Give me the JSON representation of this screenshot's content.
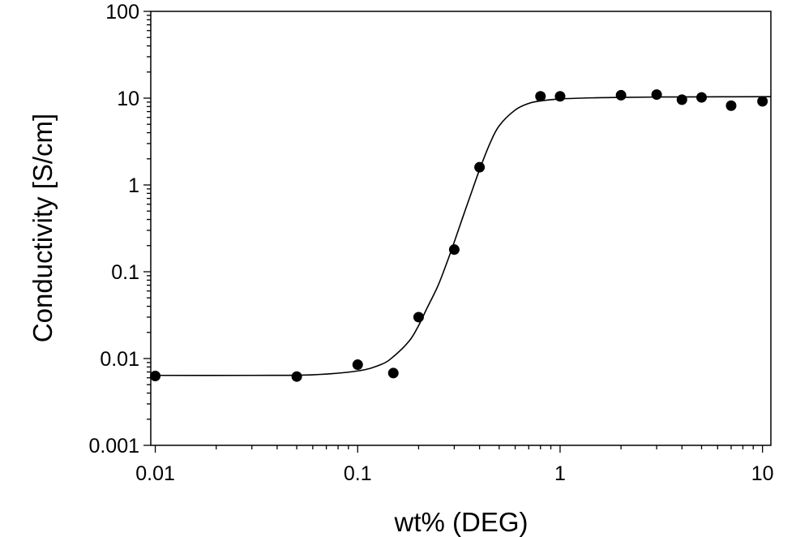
{
  "chart_data": {
    "type": "scatter",
    "title": "",
    "xlabel": "wt% (DEG)",
    "ylabel": "Conductivity [S/cm]",
    "x_scale": "log",
    "y_scale": "log",
    "xlim": [
      0.0095,
      11
    ],
    "ylim": [
      0.001,
      100
    ],
    "x_ticks": [
      {
        "value": 0.01,
        "label": "0.01"
      },
      {
        "value": 0.1,
        "label": "0.1"
      },
      {
        "value": 1,
        "label": "1"
      },
      {
        "value": 10,
        "label": "10"
      }
    ],
    "y_ticks": [
      {
        "value": 0.001,
        "label": "0.001"
      },
      {
        "value": 0.01,
        "label": "0.01"
      },
      {
        "value": 0.1,
        "label": "0.1"
      },
      {
        "value": 1,
        "label": "1"
      },
      {
        "value": 10,
        "label": "10"
      },
      {
        "value": 100,
        "label": "100"
      }
    ],
    "grid": false,
    "legend": "none",
    "marker_color": "#000000",
    "series": [
      {
        "kind": "points",
        "x": [
          0.01,
          0.05,
          0.1,
          0.15,
          0.2,
          0.3,
          0.4,
          0.8,
          1,
          2,
          3,
          4,
          5,
          7,
          10
        ],
        "y": [
          0.0063,
          0.0062,
          0.0085,
          0.0068,
          0.03,
          0.18,
          1.6,
          10.5,
          10.5,
          10.8,
          11.0,
          9.6,
          10.2,
          8.2,
          9.2
        ]
      },
      {
        "kind": "fit-line",
        "x": [
          0.01,
          0.03,
          0.06,
          0.1,
          0.13,
          0.15,
          0.18,
          0.2,
          0.22,
          0.25,
          0.28,
          0.3,
          0.33,
          0.36,
          0.4,
          0.45,
          0.5,
          0.6,
          0.7,
          0.8,
          1,
          1.5,
          2,
          3,
          5,
          11
        ],
        "y": [
          0.0064,
          0.0064,
          0.0065,
          0.0072,
          0.0085,
          0.0105,
          0.016,
          0.024,
          0.038,
          0.07,
          0.14,
          0.22,
          0.42,
          0.75,
          1.5,
          3.0,
          4.8,
          7.3,
          8.7,
          9.3,
          9.8,
          10.1,
          10.2,
          10.3,
          10.35,
          10.4
        ]
      }
    ]
  }
}
